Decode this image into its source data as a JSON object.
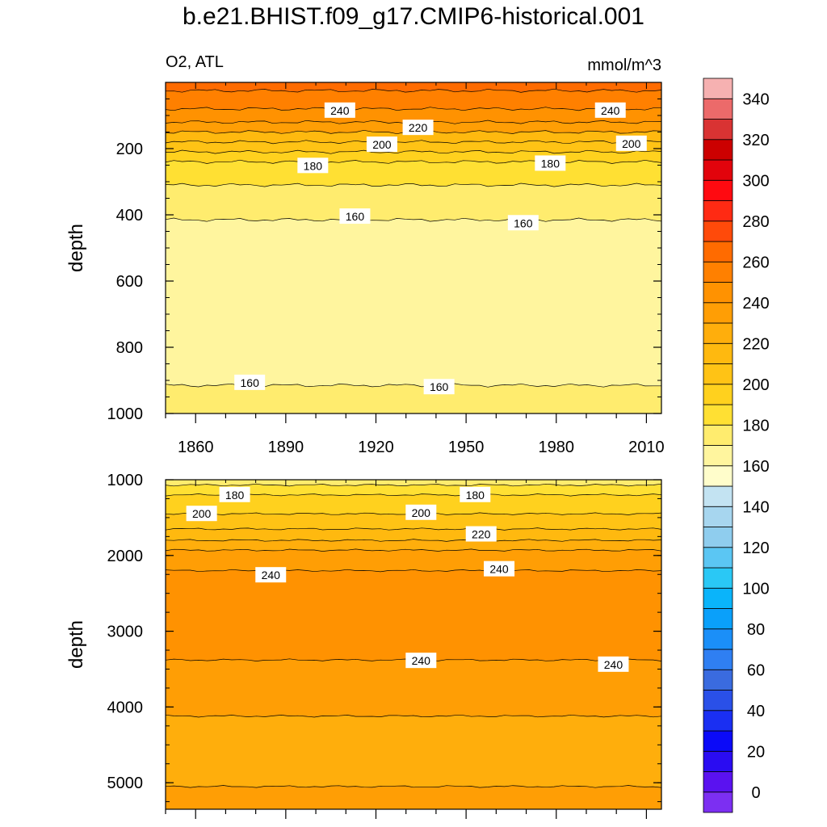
{
  "title": "b.e21.BHIST.f09_g17.CMIP6-historical.001",
  "colors": {
    "bg": "#ffffff",
    "axis": "#000000",
    "levels": [
      "#7c2ff2",
      "#5a12f0",
      "#2a0cf2",
      "#0b0af8",
      "#1a2ff2",
      "#2a50e8",
      "#3a6bdf",
      "#2f7ff2",
      "#1b8ff8",
      "#0aa0fa",
      "#0ab4fa",
      "#2ac8f5",
      "#5bc6f3",
      "#8fcdee",
      "#a7d6ef",
      "#c3e3f2",
      "#fffdcb",
      "#fff59e",
      "#ffec6e",
      "#ffe033",
      "#ffd11e",
      "#ffc315",
      "#ffb90f",
      "#ffae0c",
      "#ff9e05",
      "#ff9201",
      "#ff8000",
      "#ff6b00",
      "#ff4a0a",
      "#ff2a13",
      "#ff0a10",
      "#e2030c",
      "#cc0000",
      "#d93333",
      "#ec6a6a",
      "#f6b1b1"
    ]
  },
  "colorbar": {
    "ticks": [
      0,
      20,
      40,
      60,
      80,
      100,
      120,
      140,
      160,
      180,
      200,
      220,
      240,
      260,
      280,
      300,
      320,
      340
    ],
    "min": -10,
    "max": 360,
    "step": 10
  },
  "chart_data": [
    {
      "type": "contour",
      "name": "upper-panel",
      "title_left": "O2, ATL",
      "title_right": "mmol/m^3",
      "xlabel": "",
      "ylabel": "depth",
      "xlim": [
        1850,
        2015
      ],
      "ylim": [
        0,
        1000
      ],
      "xticks": [
        1860,
        1890,
        1920,
        1950,
        1980,
        2010
      ],
      "yticks": [
        200,
        400,
        600,
        800,
        1000
      ],
      "bands": [
        {
          "fill_value": 260,
          "top": 0,
          "bottom": 25
        },
        {
          "fill_value": 250,
          "top": 25,
          "bottom": 80
        },
        {
          "fill_value": 240,
          "top": 80,
          "bottom": 120
        },
        {
          "fill_value": 230,
          "top": 120,
          "bottom": 150
        },
        {
          "fill_value": 210,
          "top": 150,
          "bottom": 180
        },
        {
          "fill_value": 200,
          "top": 180,
          "bottom": 210
        },
        {
          "fill_value": 190,
          "top": 210,
          "bottom": 240
        },
        {
          "fill_value": 180,
          "top": 240,
          "bottom": 310
        },
        {
          "fill_value": 170,
          "top": 310,
          "bottom": 415
        },
        {
          "fill_value": 160,
          "top": 415,
          "bottom": 915
        },
        {
          "fill_value": 170,
          "top": 915,
          "bottom": 1000
        }
      ],
      "labels": [
        {
          "text": "240",
          "x": 1908,
          "y": 85
        },
        {
          "text": "240",
          "x": 1998,
          "y": 85
        },
        {
          "text": "220",
          "x": 1934,
          "y": 137
        },
        {
          "text": "200",
          "x": 1922,
          "y": 188
        },
        {
          "text": "200",
          "x": 2005,
          "y": 185
        },
        {
          "text": "180",
          "x": 1899,
          "y": 252
        },
        {
          "text": "180",
          "x": 1978,
          "y": 245
        },
        {
          "text": "160",
          "x": 1913,
          "y": 405
        },
        {
          "text": "160",
          "x": 1969,
          "y": 425
        },
        {
          "text": "160",
          "x": 1878,
          "y": 907
        },
        {
          "text": "160",
          "x": 1941,
          "y": 920
        }
      ]
    },
    {
      "type": "contour",
      "name": "lower-panel",
      "xlabel": "",
      "ylabel": "depth",
      "xlim": [
        1850,
        2015
      ],
      "ylim": [
        1000,
        5350
      ],
      "yticks": [
        1000,
        2000,
        3000,
        4000,
        5000
      ],
      "bands": [
        {
          "fill_value": 170,
          "top": 1000,
          "bottom": 1070
        },
        {
          "fill_value": 180,
          "top": 1070,
          "bottom": 1200
        },
        {
          "fill_value": 190,
          "top": 1200,
          "bottom": 1450
        },
        {
          "fill_value": 200,
          "top": 1450,
          "bottom": 1650
        },
        {
          "fill_value": 210,
          "top": 1650,
          "bottom": 1800
        },
        {
          "fill_value": 220,
          "top": 1800,
          "bottom": 1930
        },
        {
          "fill_value": 230,
          "top": 1930,
          "bottom": 2200
        },
        {
          "fill_value": 240,
          "top": 2200,
          "bottom": 3380
        },
        {
          "fill_value": 230,
          "top": 3380,
          "bottom": 4120
        },
        {
          "fill_value": 220,
          "top": 4120,
          "bottom": 5050
        },
        {
          "fill_value": 230,
          "top": 5050,
          "bottom": 5350
        }
      ],
      "labels": [
        {
          "text": "180",
          "x": 1873,
          "y": 1200
        },
        {
          "text": "180",
          "x": 1953,
          "y": 1200
        },
        {
          "text": "200",
          "x": 1862,
          "y": 1450
        },
        {
          "text": "200",
          "x": 1935,
          "y": 1435
        },
        {
          "text": "220",
          "x": 1955,
          "y": 1720
        },
        {
          "text": "240",
          "x": 1885,
          "y": 2260
        },
        {
          "text": "240",
          "x": 1961,
          "y": 2180
        },
        {
          "text": "240",
          "x": 1935,
          "y": 3390
        },
        {
          "text": "240",
          "x": 1999,
          "y": 3440
        }
      ]
    }
  ]
}
